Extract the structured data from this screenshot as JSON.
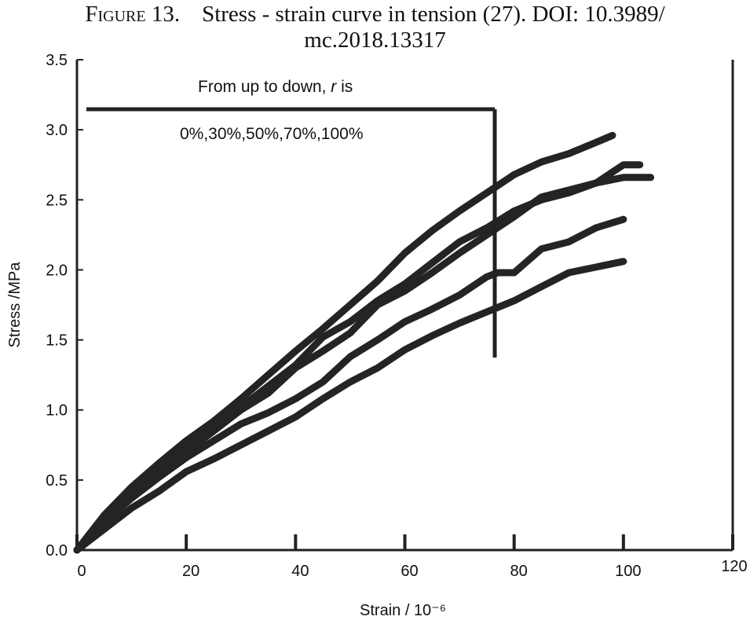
{
  "caption": {
    "figure_label": "Figure 13.",
    "text_line1": "Stress - strain curve in tension (27). DOI: 10.3989/",
    "text_line2": "mc.2018.13317"
  },
  "chart_data": {
    "type": "line",
    "title": "",
    "xlabel": "Strain / 10⁻⁶",
    "ylabel": "Stress /MPa",
    "xlim": [
      0,
      120
    ],
    "ylim": [
      0,
      3.5
    ],
    "xticks": [
      "0",
      "20",
      "40",
      "60",
      "80",
      "100",
      "120"
    ],
    "yticks": [
      "0.0",
      "0.5",
      "1.0",
      "1.5",
      "2.0",
      "2.5",
      "3.0",
      "3.5"
    ],
    "annotation": {
      "line1_prefix": "From up to down, ",
      "line1_var": "r",
      "line1_suffix": " is",
      "line2": "0%,30%,50%,70%,100%"
    },
    "series": [
      {
        "x": [
          0,
          5,
          10,
          15,
          20,
          25,
          30,
          35,
          40,
          45,
          50,
          55,
          60,
          65,
          70,
          75,
          80,
          85,
          90,
          95,
          98
        ],
        "y": [
          0,
          0.25,
          0.45,
          0.62,
          0.78,
          0.92,
          1.08,
          1.25,
          1.42,
          1.58,
          1.75,
          1.92,
          2.12,
          2.28,
          2.42,
          2.55,
          2.68,
          2.77,
          2.83,
          2.91,
          2.96
        ]
      },
      {
        "x": [
          0,
          5,
          10,
          15,
          20,
          25,
          30,
          35,
          40,
          45,
          50,
          55,
          60,
          65,
          70,
          75,
          80,
          85,
          90,
          95,
          100,
          103
        ],
        "y": [
          0,
          0.24,
          0.42,
          0.58,
          0.74,
          0.88,
          1.02,
          1.17,
          1.32,
          1.52,
          1.63,
          1.78,
          1.9,
          2.05,
          2.2,
          2.3,
          2.42,
          2.5,
          2.55,
          2.62,
          2.75,
          2.75
        ]
      },
      {
        "x": [
          0,
          5,
          10,
          15,
          20,
          25,
          30,
          35,
          40,
          45,
          50,
          55,
          60,
          65,
          70,
          75,
          80,
          85,
          90,
          95,
          100,
          105
        ],
        "y": [
          0,
          0.22,
          0.4,
          0.55,
          0.7,
          0.85,
          1.0,
          1.12,
          1.3,
          1.42,
          1.55,
          1.75,
          1.85,
          1.98,
          2.12,
          2.25,
          2.38,
          2.52,
          2.57,
          2.62,
          2.66,
          2.66
        ]
      },
      {
        "x": [
          0,
          5,
          10,
          15,
          20,
          25,
          30,
          35,
          40,
          45,
          50,
          55,
          60,
          65,
          70,
          75,
          77,
          80,
          85,
          90,
          95,
          100
        ],
        "y": [
          0,
          0.2,
          0.37,
          0.52,
          0.66,
          0.78,
          0.9,
          0.98,
          1.08,
          1.2,
          1.38,
          1.5,
          1.63,
          1.72,
          1.82,
          1.95,
          1.98,
          1.98,
          2.15,
          2.2,
          2.3,
          2.36
        ]
      },
      {
        "x": [
          0,
          5,
          10,
          15,
          20,
          25,
          30,
          35,
          40,
          45,
          50,
          55,
          60,
          65,
          70,
          75,
          80,
          85,
          90,
          95,
          100
        ],
        "y": [
          0,
          0.15,
          0.3,
          0.42,
          0.56,
          0.65,
          0.75,
          0.85,
          0.95,
          1.08,
          1.2,
          1.3,
          1.43,
          1.53,
          1.62,
          1.7,
          1.78,
          1.88,
          1.98,
          2.02,
          2.06
        ]
      }
    ]
  }
}
